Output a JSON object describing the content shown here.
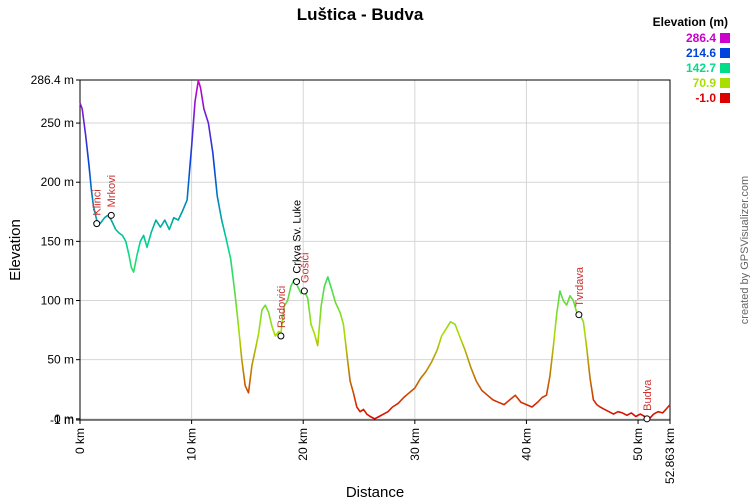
{
  "chart_data": {
    "type": "line",
    "title": "Luštica - Budva",
    "xlabel": "Distance",
    "ylabel": "Elevation",
    "credit": "created by GPSVisualizer.com",
    "xlim": [
      0,
      52.863
    ],
    "ylim": [
      -1,
      286.4
    ],
    "x_ticks": [
      {
        "value": 0,
        "label": "0 km"
      },
      {
        "value": 10,
        "label": "10 km"
      },
      {
        "value": 20,
        "label": "20 km"
      },
      {
        "value": 30,
        "label": "30 km"
      },
      {
        "value": 40,
        "label": "40 km"
      },
      {
        "value": 50,
        "label": "50 km"
      },
      {
        "value": 52.863,
        "label": "52.863 km"
      }
    ],
    "y_ticks": [
      {
        "value": 286.4,
        "label": "286.4 m"
      },
      {
        "value": 250,
        "label": "250 m"
      },
      {
        "value": 200,
        "label": "200 m"
      },
      {
        "value": 150,
        "label": "150 m"
      },
      {
        "value": 100,
        "label": "100 m"
      },
      {
        "value": 50,
        "label": "50 m"
      },
      {
        "value": 0,
        "label": "0 m"
      },
      {
        "value": -1,
        "label": "-1 m"
      }
    ],
    "legend": {
      "title": "Elevation (m)",
      "placement": "top-right",
      "entries": [
        {
          "label": "286.4",
          "color": "#cc00cc"
        },
        {
          "label": "214.6",
          "color": "#0044dd"
        },
        {
          "label": "142.7",
          "color": "#00dd88"
        },
        {
          "label": "70.9",
          "color": "#aadd00"
        },
        {
          "label": "-1.0",
          "color": "#dd0000"
        }
      ]
    },
    "waypoints": [
      {
        "name": "Klinci",
        "x": 1.5,
        "y": 165,
        "color": "#cc3333"
      },
      {
        "name": "Mrkovi",
        "x": 2.8,
        "y": 172,
        "color": "#cc3333"
      },
      {
        "name": "Radovići",
        "x": 18.0,
        "y": 70,
        "color": "#cc3333"
      },
      {
        "name": "Crkva Sv. Luke",
        "x": 19.4,
        "y": 116,
        "color": "#000000"
      },
      {
        "name": "Gošići",
        "x": 20.1,
        "y": 108,
        "color": "#cc3333"
      },
      {
        "name": "Tvrdava",
        "x": 44.7,
        "y": 88,
        "color": "#cc3333"
      },
      {
        "name": "Budva",
        "x": 50.8,
        "y": 0,
        "color": "#cc3333"
      }
    ],
    "series": [
      {
        "x": [
          0,
          0.2,
          0.5,
          0.8,
          1.0,
          1.2,
          1.5,
          1.8,
          2.2,
          2.5,
          2.8,
          3.2,
          3.5,
          3.8,
          4.1,
          4.4,
          4.6,
          4.8,
          5.1,
          5.4,
          5.7,
          6.0,
          6.4,
          6.8,
          7.2,
          7.6,
          8.0,
          8.4,
          8.8,
          9.2,
          9.6,
          10.0,
          10.3,
          10.6,
          10.8,
          11.1,
          11.5,
          11.9,
          12.3,
          12.7,
          13.1,
          13.5,
          13.9,
          14.2,
          14.5,
          14.8,
          15.1,
          15.4,
          15.7,
          16.0,
          16.3,
          16.6,
          16.9,
          17.2,
          17.5,
          17.8,
          18.0,
          18.3,
          18.6,
          18.9,
          19.2,
          19.5,
          19.8,
          20.1,
          20.4,
          20.7,
          21.0,
          21.3,
          21.6,
          21.9,
          22.2,
          22.6,
          22.9,
          23.3,
          23.6,
          23.9,
          24.2,
          24.5,
          24.8,
          25.1,
          25.4,
          25.7,
          26.0,
          26.4,
          26.8,
          27.2,
          27.6,
          28.0,
          28.5,
          29.0,
          29.5,
          30.0,
          30.5,
          31.0,
          31.5,
          32.0,
          32.4,
          32.8,
          33.2,
          33.6,
          34.0,
          34.5,
          35.0,
          35.5,
          36.0,
          36.5,
          37.0,
          37.5,
          38.0,
          38.5,
          39.0,
          39.5,
          40.0,
          40.5,
          41.0,
          41.4,
          41.8,
          42.1,
          42.4,
          42.7,
          43.0,
          43.3,
          43.6,
          43.9,
          44.2,
          44.5,
          44.8,
          45.1,
          45.4,
          45.7,
          46.0,
          46.3,
          46.6,
          47.0,
          47.4,
          47.8,
          48.2,
          48.6,
          49.0,
          49.4,
          49.8,
          50.2,
          50.6,
          51.0,
          51.4,
          51.8,
          52.2,
          52.5,
          52.863
        ],
        "y": [
          267,
          262,
          240,
          215,
          195,
          180,
          168,
          165,
          170,
          172,
          168,
          160,
          157,
          155,
          150,
          138,
          128,
          124,
          138,
          150,
          155,
          145,
          158,
          168,
          162,
          168,
          160,
          170,
          168,
          176,
          185,
          230,
          268,
          286,
          280,
          262,
          250,
          225,
          188,
          168,
          152,
          135,
          105,
          78,
          50,
          28,
          22,
          45,
          58,
          72,
          92,
          96,
          90,
          78,
          70,
          74,
          72,
          95,
          100,
          112,
          118,
          112,
          106,
          108,
          102,
          80,
          72,
          62,
          95,
          112,
          120,
          108,
          98,
          90,
          80,
          56,
          32,
          22,
          10,
          6,
          8,
          4,
          2,
          0,
          2,
          4,
          6,
          10,
          13,
          18,
          22,
          26,
          34,
          40,
          48,
          58,
          70,
          76,
          82,
          80,
          70,
          58,
          44,
          32,
          24,
          20,
          16,
          14,
          12,
          16,
          20,
          14,
          12,
          10,
          14,
          18,
          20,
          36,
          60,
          88,
          108,
          100,
          96,
          104,
          100,
          90,
          88,
          82,
          60,
          34,
          16,
          12,
          10,
          8,
          6,
          4,
          6,
          5,
          3,
          5,
          2,
          4,
          2,
          0,
          4,
          6,
          5,
          8,
          12
        ]
      }
    ]
  }
}
